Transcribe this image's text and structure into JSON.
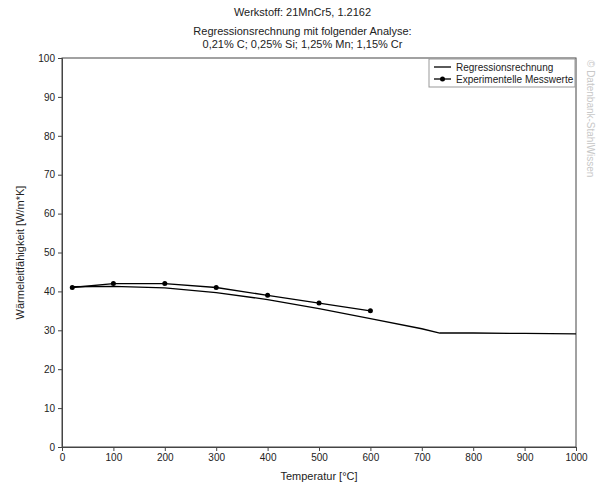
{
  "chart_data": {
    "type": "line",
    "title": "Werkstoff: 21MnCr5, 1.2162",
    "subtitle": [
      "Regressionsrechnung mit folgender Analyse:",
      "0,21% C; 0,25% Si; 1,25% Mn; 1,15% Cr"
    ],
    "x_label": "Temperatur [°C]",
    "y_label": "Wärmeleitfähigkeit [W/m*K]",
    "annotations": [
      "© Datenbank-StahlWissen"
    ],
    "series": [
      {
        "name": "Regressionsrechnung",
        "color": "#000000",
        "line_style": "solid",
        "marker": "none",
        "x": [
          20,
          100,
          200,
          300,
          400,
          500,
          600,
          700,
          735,
          800,
          900,
          1000
        ],
        "values": [
          41.2,
          41.3,
          40.9,
          39.7,
          37.9,
          35.6,
          33.0,
          30.4,
          29.3,
          29.3,
          29.2,
          29.1
        ]
      },
      {
        "name": "Experimentelle Messwerte",
        "color": "#000000",
        "line_style": "solid",
        "marker": "circle",
        "x": [
          20,
          100,
          200,
          300,
          400,
          500,
          600
        ],
        "values": [
          41,
          42,
          42,
          41,
          39,
          37,
          35
        ]
      }
    ],
    "xlim": [
      0,
      1000
    ],
    "xticks": [
      0,
      100,
      200,
      300,
      400,
      500,
      600,
      700,
      800,
      900,
      1000
    ],
    "ylim": [
      0,
      100
    ],
    "yticks": [
      0,
      10,
      20,
      30,
      40,
      50,
      60,
      70,
      80,
      90,
      100
    ],
    "grid": false,
    "legend": "top-right"
  }
}
